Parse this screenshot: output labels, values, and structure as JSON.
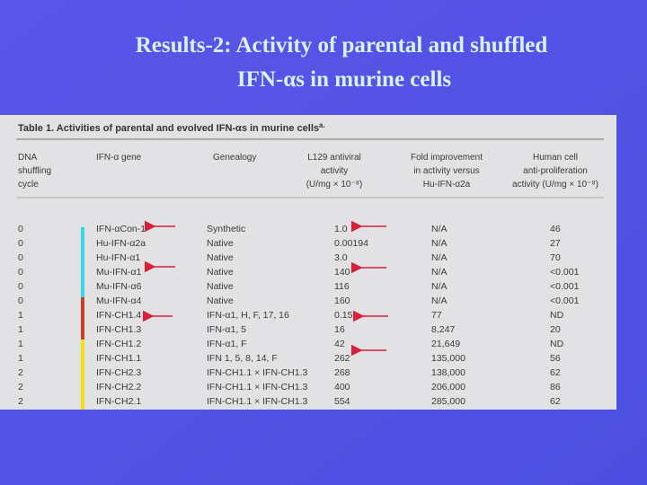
{
  "slide": {
    "title_lines": [
      "Results-2: Activity of parental and shuffled",
      "IFN-αs in murine cells"
    ]
  },
  "table": {
    "title": "Table 1. Activities of parental and evolved IFN-αs in murine cells",
    "title_note": "a.",
    "headers": [
      [
        "DNA",
        "shuffling",
        "cycle"
      ],
      [
        "IFN-α gene"
      ],
      [
        "Genealogy"
      ],
      [
        "L129 antiviral",
        "activity",
        "(U/mg × 10⁻⁸)"
      ],
      [
        "Fold improvement",
        "in activity versus",
        "Hu-IFN-α2a"
      ],
      [
        "Human cell",
        "anti-proliferation",
        "activity (U/mg × 10⁻⁸)"
      ]
    ],
    "rows": [
      [
        "0",
        "IFN-αCon-1",
        "Synthetic",
        "1.0",
        "N/A",
        "46"
      ],
      [
        "0",
        "Hu-IFN-α2a",
        "Native",
        "0.00194",
        "N/A",
        "27"
      ],
      [
        "0",
        "Hu-IFN-α1",
        "Native",
        "3.0",
        "N/A",
        "70"
      ],
      [
        "0",
        "Mu-IFN-α1",
        "Native",
        "140",
        "N/A",
        "<0.001"
      ],
      [
        "0",
        "Mu-IFN-α6",
        "Native",
        "116",
        "N/A",
        "<0.001"
      ],
      [
        "0",
        "Mu-IFN-α4",
        "Native",
        "160",
        "N/A",
        "<0.001"
      ],
      [
        "1",
        "IFN-CH1.4",
        "IFN-α1, H, F, 17, 16",
        "0.15",
        "77",
        "ND"
      ],
      [
        "1",
        "IFN-CH1.3",
        "IFN-α1, 5",
        "16",
        "8,247",
        "20"
      ],
      [
        "1",
        "IFN-CH1.2",
        "IFN-α1, F",
        "42",
        "21,649",
        "ND"
      ],
      [
        "1",
        "IFN-CH1.1",
        "IFN 1, 5, 8, 14, F",
        "262",
        "135,000",
        "56"
      ],
      [
        "2",
        "IFN-CH2.3",
        "IFN-CH1.1 × IFN-CH1.3",
        "268",
        "138,000",
        "62"
      ],
      [
        "2",
        "IFN-CH2.2",
        "IFN-CH1.1 × IFN-CH1.3",
        "400",
        "206,000",
        "86"
      ],
      [
        "2",
        "IFN-CH2.1",
        "IFN-CH1.1 × IFN-CH1.3",
        "554",
        "285,000",
        "62"
      ]
    ]
  }
}
